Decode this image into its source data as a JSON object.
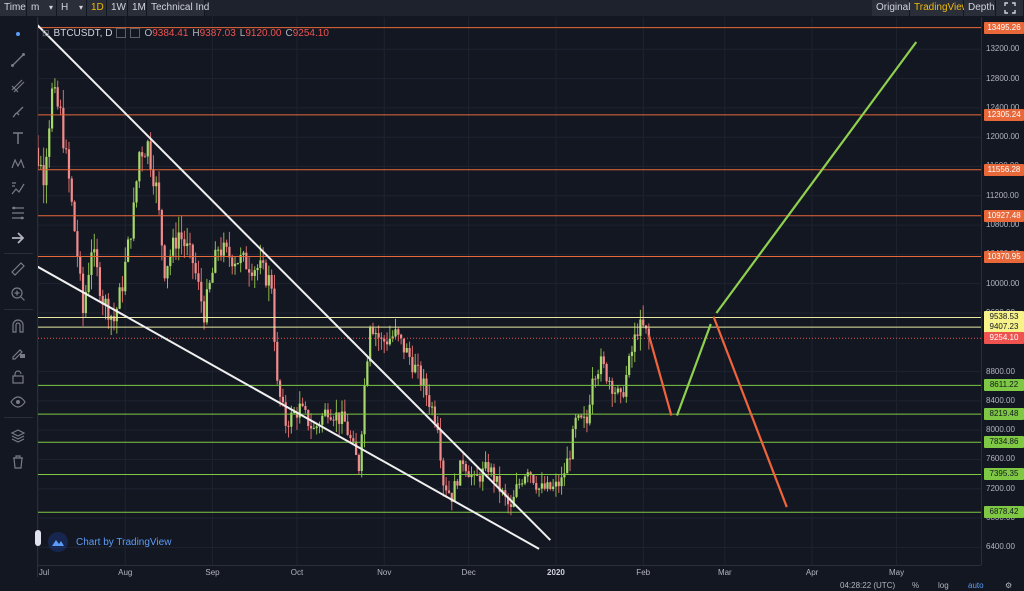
{
  "toolbar": {
    "items": [
      {
        "label": "Time"
      },
      {
        "label": "m"
      },
      {
        "label": "H"
      },
      {
        "label": "1D"
      },
      {
        "label": "1W"
      },
      {
        "label": "1M"
      },
      {
        "label": "Technical Ind"
      }
    ],
    "right": [
      {
        "label": "Original"
      },
      {
        "label": "TradingView"
      },
      {
        "label": "Depth"
      }
    ]
  },
  "legend": {
    "symbol": "BTCUSDT, D",
    "open_key": "O",
    "open": "9384.41",
    "high_key": "H",
    "high": "9387.03",
    "low_key": "L",
    "low": "9120.00",
    "close_key": "C",
    "close": "9254.10"
  },
  "watermark": "Chart by TradingView",
  "price_ticks": [
    "13200.00",
    "12800.00",
    "12400.00",
    "12000.00",
    "11600.00",
    "11200.00",
    "10800.00",
    "10400.00",
    "10000.00",
    "9600.00",
    "8800.00",
    "8400.00",
    "8000.00",
    "7600.00",
    "7200.00",
    "6800.00",
    "6400.00"
  ],
  "price_labels": [
    {
      "text": "13495.26",
      "kind": "orange"
    },
    {
      "text": "12305.24",
      "kind": "orange"
    },
    {
      "text": "11556.28",
      "kind": "orange"
    },
    {
      "text": "10927.48",
      "kind": "orange"
    },
    {
      "text": "10370.95",
      "kind": "orange"
    },
    {
      "text": "9538.53",
      "kind": "yellow"
    },
    {
      "text": "9407.23",
      "kind": "yellow"
    },
    {
      "text": "9254.10",
      "kind": "red"
    },
    {
      "text": "8611.22",
      "kind": "green"
    },
    {
      "text": "8219.48",
      "kind": "green"
    },
    {
      "text": "7834.86",
      "kind": "green"
    },
    {
      "text": "7395.35",
      "kind": "green"
    },
    {
      "text": "6878.42",
      "kind": "green"
    }
  ],
  "time_ticks": [
    {
      "label": "Jul",
      "bold": false
    },
    {
      "label": "Aug",
      "bold": false
    },
    {
      "label": "Sep",
      "bold": false
    },
    {
      "label": "Oct",
      "bold": false
    },
    {
      "label": "Nov",
      "bold": false
    },
    {
      "label": "Dec",
      "bold": false
    },
    {
      "label": "2020",
      "bold": true
    },
    {
      "label": "Feb",
      "bold": false
    },
    {
      "label": "Mar",
      "bold": false
    },
    {
      "label": "Apr",
      "bold": false
    },
    {
      "label": "May",
      "bold": false
    }
  ],
  "bottom": {
    "clock": "04:28:22 (UTC)",
    "percent": "%",
    "log": "log",
    "auto": "auto"
  },
  "colors": {
    "up": "#26a69a",
    "down": "#ef5350",
    "resistance": "#e8683a",
    "support": "#7ec843",
    "current": "#ef5350",
    "accent": "#f0b90b"
  },
  "chart_data": {
    "type": "candlestick",
    "symbol": "BTCUSDT",
    "interval": "D",
    "x_range": [
      "2019-07-01",
      "2020-05-31"
    ],
    "y_range": [
      6200,
      13600
    ],
    "current_price": 9254.1,
    "horizontal_levels": {
      "resistance": [
        13495.26,
        12305.24,
        11556.28,
        10927.48,
        10370.95
      ],
      "near": [
        9538.53,
        9407.23
      ],
      "support": [
        8611.22,
        8219.48,
        7834.86,
        7395.35,
        6878.42
      ]
    },
    "trendlines": [
      {
        "kind": "descending-channel-upper",
        "color": "white",
        "from": [
          "2019-06-29",
          13600
        ],
        "to": [
          "2019-12-30",
          6500
        ]
      },
      {
        "kind": "descending-channel-lower",
        "color": "white",
        "from": [
          "2019-06-30",
          10250
        ],
        "to": [
          "2019-12-26",
          6380
        ]
      }
    ],
    "projections": [
      {
        "color": "red",
        "points": [
          [
            "2020-02-03",
            9300
          ],
          [
            "2020-02-11",
            8200
          ]
        ]
      },
      {
        "color": "green",
        "points": [
          [
            "2020-02-13",
            8200
          ],
          [
            "2020-02-25",
            9450
          ]
        ]
      },
      {
        "color": "green",
        "points": [
          [
            "2020-02-27",
            9600
          ],
          [
            "2020-05-08",
            13300
          ]
        ]
      },
      {
        "color": "red",
        "points": [
          [
            "2020-02-26",
            9550
          ],
          [
            "2020-03-23",
            6950
          ]
        ]
      }
    ]
  }
}
